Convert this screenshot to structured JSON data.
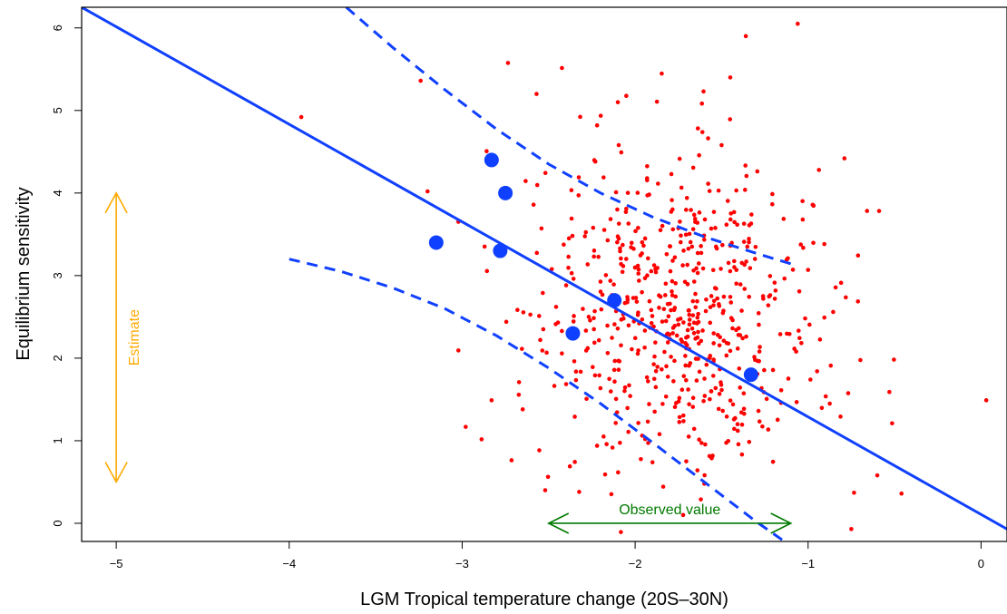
{
  "chart_data": {
    "type": "scatter",
    "xlabel": "LGM Tropical temperature change (20S–30N)",
    "ylabel": "Equilibrium sensitivity",
    "xlim": [
      -5.2,
      0.15
    ],
    "ylim": [
      -0.22,
      6.25
    ],
    "xticks": [
      -5,
      -4,
      -3,
      -2,
      -1,
      0
    ],
    "yticks": [
      0,
      1,
      2,
      3,
      4,
      5,
      6
    ],
    "xtick_labels": [
      "−5",
      "−4",
      "−3",
      "−2",
      "−1",
      "0"
    ],
    "ytick_labels": [
      "0",
      "1",
      "2",
      "3",
      "4",
      "5",
      "6"
    ],
    "grid": false,
    "colors": {
      "ensemble": "#ff0000",
      "models": "#1040ff",
      "regression": "#1040ff",
      "estimate": "#ffaa00",
      "observed": "#007a00"
    },
    "regression_line": {
      "x": [
        -5.2,
        0.15
      ],
      "y": [
        6.25,
        -0.07
      ]
    },
    "prediction_upper": {
      "x": [
        -3.67,
        -3.4,
        -3.1,
        -2.8,
        -2.5,
        -2.2,
        -1.9,
        -1.6,
        -1.3,
        -1.08
      ],
      "y": [
        6.25,
        5.76,
        5.25,
        4.77,
        4.35,
        4.0,
        3.71,
        3.47,
        3.27,
        3.13
      ]
    },
    "prediction_lower": {
      "x": [
        -4.0,
        -3.7,
        -3.4,
        -3.1,
        -2.8,
        -2.5,
        -2.2,
        -1.9,
        -1.6,
        -1.3,
        -1.15
      ],
      "y": [
        3.2,
        3.05,
        2.85,
        2.6,
        2.27,
        1.88,
        1.45,
        0.98,
        0.5,
        0.02,
        -0.2
      ]
    },
    "model_points": {
      "x": [
        -2.83,
        -2.75,
        -3.15,
        -2.78,
        -2.12,
        -2.36,
        -1.33
      ],
      "y": [
        4.4,
        4.0,
        3.4,
        3.3,
        2.7,
        2.3,
        1.8
      ]
    },
    "ensemble_points": {
      "count": 620,
      "seed": 20240517,
      "x_mean": -1.75,
      "x_sd": 0.42,
      "y_mean": 2.5,
      "y_sd": 0.95,
      "outliers": {
        "x": [
          -3.93,
          -3.24,
          -3.2,
          -2.83,
          -2.65,
          -2.57,
          -2.52,
          -1.36,
          -1.06,
          -0.79,
          -0.53,
          -0.46,
          -0.75,
          0.03,
          -2.1,
          -1.45,
          -1.5,
          -0.6
        ],
        "y": [
          4.92,
          5.36,
          4.02,
          1.49,
          1.38,
          5.2,
          0.4,
          5.9,
          6.05,
          4.42,
          1.59,
          0.36,
          -0.07,
          1.49,
          5.1,
          5.4,
          4.58,
          0.58
        ]
      }
    },
    "annotations": {
      "estimate": {
        "label": "Estimate",
        "x": -5.0,
        "y_range": [
          0.5,
          4.0
        ]
      },
      "observed": {
        "label": "Observed value",
        "y": 0.0,
        "x_range": [
          -2.5,
          -1.1
        ]
      }
    }
  }
}
